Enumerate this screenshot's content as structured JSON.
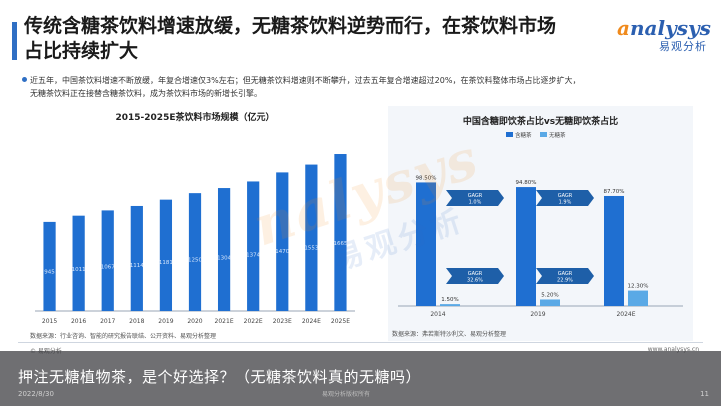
{
  "header": {
    "title_line1": "传统含糖茶饮料增速放缓，无糖茶饮料逆势而行，在茶饮料市场",
    "title_line2": "占比持续扩大",
    "logo_mark": "nalysys",
    "logo_sub": "易观分析"
  },
  "body": {
    "bullet_line1": "近五年，中国茶饮料增速不断放缓，年复合增速仅3%左右；但无糖茶饮料增速则不断攀升，过去五年复合增速超过20%，在茶饮料整体市场占比逐步扩大，",
    "bullet_line2": "无糖茶饮料正在接替含糖茶饮料，成为茶饮料市场的新增长引擎。"
  },
  "footer": {
    "logo": "© 易观分析",
    "url": "www.analysys.cn",
    "date": "2022/8/30",
    "page": "11",
    "mid_note": "易观分析版权所有"
  },
  "caption": {
    "text": "押注无糖植物茶，是个好选择？（无糖茶饮料真的无糖吗）"
  },
  "watermark": {
    "text1": "nalysys",
    "text2": "易观分析"
  },
  "colors": {
    "accent": "#2f6fc4",
    "bar_blue": "#1f6fd1",
    "light_blue": "#5aa9e6",
    "orange": "#f08a1c"
  },
  "chart_data": [
    {
      "type": "bar",
      "title": "2015-2025E茶饮料市场规模（亿元）",
      "categories": [
        "2015",
        "2016",
        "2017",
        "2018",
        "2019",
        "2020",
        "2021E",
        "2022E",
        "2023E",
        "2024E",
        "2025E"
      ],
      "values": [
        945,
        1011,
        1067,
        1114,
        1181,
        1250,
        1304,
        1374,
        1470,
        1553,
        1665
      ],
      "value_labels": [
        "945",
        "1011",
        "1067",
        "1114",
        "1181",
        "1250",
        "1304",
        "1374",
        "1470",
        "1553",
        "1665"
      ],
      "source": "数据来源：行业咨询、智能的研究报告联结、公开资料、易观分析整理"
    },
    {
      "type": "bar",
      "title": "中国含糖即饮茶占比vs无糖即饮茶占比",
      "categories": [
        "2014",
        "2019",
        "2024E"
      ],
      "series": [
        {
          "name": "含糖茶",
          "values": [
            98.5,
            94.8,
            87.7
          ]
        },
        {
          "name": "无糖茶",
          "values": [
            1.5,
            5.2,
            12.3
          ]
        }
      ],
      "value_labels": {
        "含糖茶": [
          "98.50%",
          "94.80%",
          "87.70%"
        ],
        "无糖茶": [
          "1.50%",
          "5.20%",
          "12.30%"
        ]
      },
      "annotations": [
        {
          "label": "GAGR",
          "value": "1.0%"
        },
        {
          "label": "GAGR",
          "value": "1.9%"
        },
        {
          "label": "GAGR",
          "value": "32.6%"
        },
        {
          "label": "GAGR",
          "value": "22.9%"
        }
      ],
      "source": "数据来源：弗若斯特沙利文、易观分析整理"
    }
  ]
}
